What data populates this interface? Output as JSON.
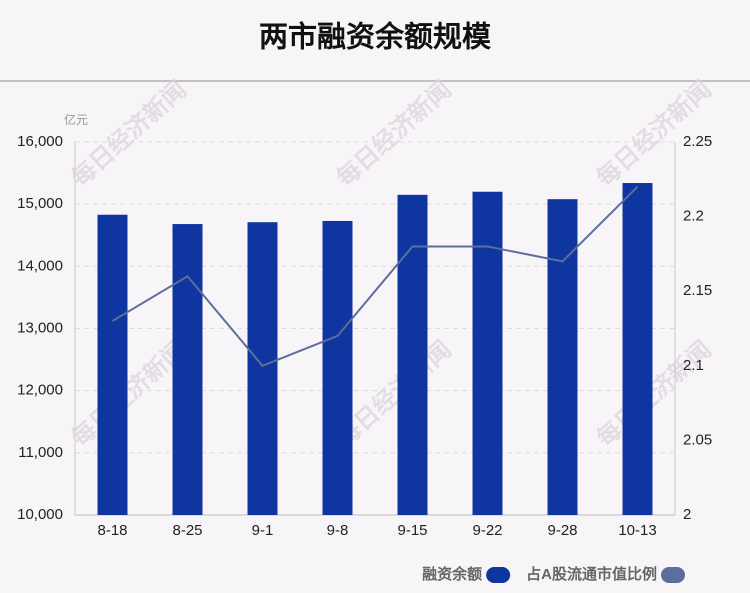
{
  "chart_data": {
    "type": "bar-line",
    "title": "两市融资余额规模",
    "y_label": "亿元",
    "watermark": "每日经济新闻",
    "categories": [
      "8-18",
      "8-25",
      "9-1",
      "9-8",
      "9-15",
      "9-22",
      "9-28",
      "10-13"
    ],
    "series": [
      {
        "name": "融资余额",
        "color": "#0f36a0",
        "type": "bar",
        "values": [
          14830,
          14680,
          14710,
          14730,
          15150,
          15200,
          15080,
          15340
        ]
      },
      {
        "name": "占A股流通市值比例",
        "color": "#5b6e9c",
        "type": "line",
        "axis": "y2",
        "values": [
          2.13,
          2.16,
          2.1,
          2.12,
          2.18,
          2.18,
          2.17,
          2.22
        ]
      }
    ],
    "ylim": [
      10000,
      16000
    ],
    "yticks": [
      {
        "value": 10000,
        "label": "10,000"
      },
      {
        "value": 11000,
        "label": "11,000"
      },
      {
        "value": 12000,
        "label": "12,000"
      },
      {
        "value": 13000,
        "label": "13,000"
      },
      {
        "value": 14000,
        "label": "14,000"
      },
      {
        "value": 15000,
        "label": "15,000"
      },
      {
        "value": 16000,
        "label": "16,000"
      }
    ],
    "y2lim": [
      2,
      2.25
    ],
    "y2ticks": [
      2,
      2.05,
      2.1,
      2.15,
      2.2,
      2.25
    ],
    "grid": true,
    "legend": "bottom-right"
  }
}
